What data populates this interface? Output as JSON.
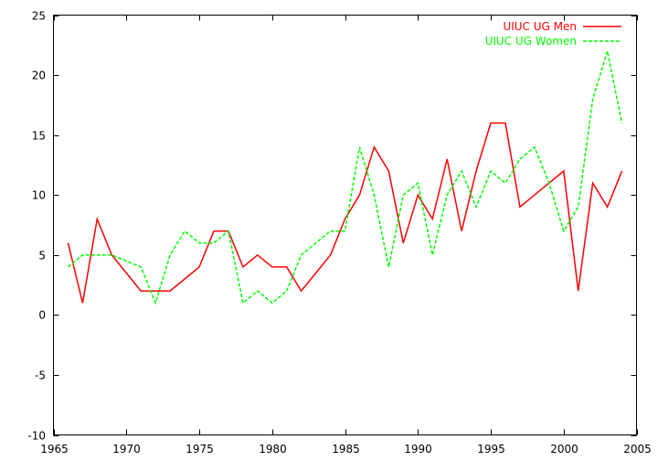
{
  "chart_data": {
    "type": "line",
    "title": "",
    "xlabel": "",
    "ylabel": "",
    "xlim": [
      1965,
      2005
    ],
    "ylim": [
      -10,
      25
    ],
    "xticks": [
      1965,
      1970,
      1975,
      1980,
      1985,
      1990,
      1995,
      2000,
      2005
    ],
    "yticks": [
      -10,
      -5,
      0,
      5,
      10,
      15,
      20,
      25
    ],
    "grid": false,
    "legend_position": "top-right",
    "x": [
      1966,
      1967,
      1968,
      1969,
      1970,
      1971,
      1972,
      1973,
      1974,
      1975,
      1976,
      1977,
      1978,
      1979,
      1980,
      1981,
      1982,
      1983,
      1984,
      1985,
      1986,
      1987,
      1988,
      1989,
      1990,
      1991,
      1992,
      1993,
      1994,
      1995,
      1996,
      1997,
      1998,
      1999,
      2000,
      2001,
      2002,
      2003,
      2004
    ],
    "series": [
      {
        "name": "UIUC UG Men",
        "color": "#ff0000",
        "dash": "solid",
        "values": [
          6,
          1,
          8,
          5,
          3.5,
          2,
          2,
          2,
          3,
          4,
          7,
          7,
          4,
          5,
          4,
          4,
          2,
          3.5,
          5,
          8,
          10,
          14,
          12,
          6,
          10,
          8,
          13,
          7,
          12,
          16,
          16,
          9,
          10,
          11,
          12,
          2,
          11,
          9,
          12
        ]
      },
      {
        "name": "UIUC UG Women",
        "color": "#00ff00",
        "dash": "dashed",
        "values": [
          4,
          5,
          5,
          5,
          4.5,
          4,
          1,
          5,
          7,
          6,
          6,
          7,
          1,
          2,
          1,
          2,
          5,
          6,
          7,
          7,
          14,
          10,
          4,
          10,
          11,
          5,
          10,
          12,
          9,
          12,
          11,
          13,
          14,
          11,
          7,
          9,
          18,
          22,
          16
        ]
      }
    ]
  }
}
